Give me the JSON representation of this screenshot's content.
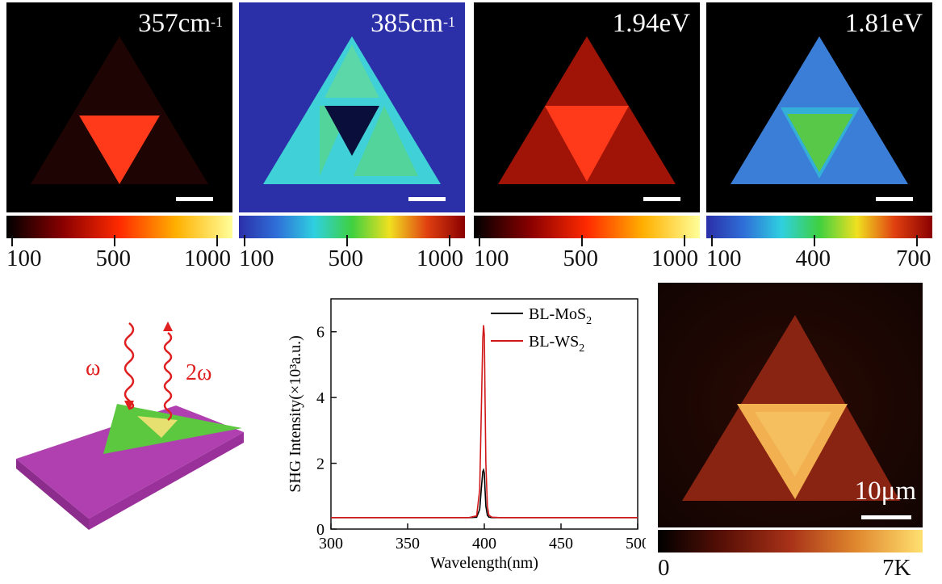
{
  "panels": [
    {
      "label_main": "357cm",
      "label_sup": "-1",
      "ticks": [
        "100",
        "500",
        "1000"
      ],
      "palette": "hot"
    },
    {
      "label_main": "385cm",
      "label_sup": "-1",
      "ticks": [
        "100",
        "500",
        "1000"
      ],
      "palette": "jet"
    },
    {
      "label_main": "1.94eV",
      "label_sup": "",
      "ticks": [
        "100",
        "500",
        "1000"
      ],
      "palette": "hot"
    },
    {
      "label_main": "1.81eV",
      "label_sup": "",
      "ticks": [
        "100",
        "400",
        "700"
      ],
      "palette": "jet"
    }
  ],
  "schematic": {
    "omega": "ω",
    "two_omega": "2ω"
  },
  "shg_map": {
    "scale_label": "10μm",
    "ticks": [
      "0",
      "7K"
    ]
  },
  "colors": {
    "hot_stops": [
      "#000000",
      "#8a0000",
      "#ff2a00",
      "#ffb000",
      "#ffff9a"
    ],
    "jet_stops": [
      "#2b2fa8",
      "#2f6fd8",
      "#2fd0e0",
      "#3fd040",
      "#f0e020",
      "#e04010",
      "#8a0000"
    ],
    "substrate": "#b040b0",
    "flake": "#5cc840",
    "bilayer": "#e6e070",
    "beam": "#e02020"
  },
  "chart_data": {
    "type": "line",
    "x": [
      300,
      390,
      395,
      397,
      398,
      399,
      399.5,
      400,
      400.5,
      401,
      402,
      403,
      405,
      410,
      500
    ],
    "series": [
      {
        "name": "BL-MoS",
        "name_sub": "2",
        "color": "#000000",
        "values": [
          0.35,
          0.35,
          0.36,
          0.6,
          1.2,
          1.75,
          1.8,
          1.7,
          1.2,
          0.7,
          0.42,
          0.36,
          0.35,
          0.35,
          0.35
        ]
      },
      {
        "name": "BL-WS",
        "name_sub": "2",
        "color": "#d01818",
        "values": [
          0.35,
          0.35,
          0.4,
          1.2,
          3.5,
          5.8,
          6.2,
          5.9,
          4.0,
          2.0,
          0.7,
          0.42,
          0.36,
          0.35,
          0.35
        ]
      }
    ],
    "xlabel": "Wavelength(nm)",
    "ylabel": "SHG Intensity(×10³a.u.)",
    "xlim": [
      300,
      500
    ],
    "ylim": [
      0,
      7
    ],
    "xticks": [
      300,
      350,
      400,
      450,
      500
    ],
    "yticks": [
      0,
      2,
      4,
      6
    ]
  }
}
